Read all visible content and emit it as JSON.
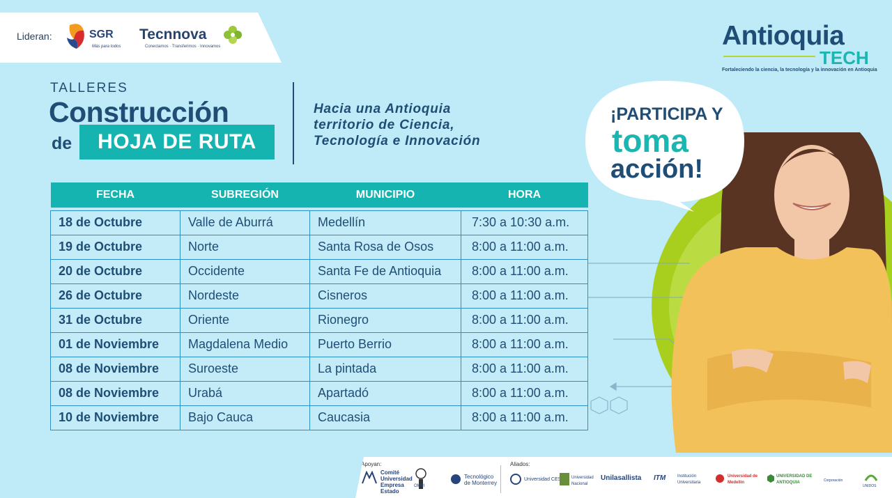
{
  "header": {
    "lead_label": "Lideran:",
    "sgr": {
      "name": "SGR",
      "tagline": "Más para todos"
    },
    "tecnnova": {
      "name": "Tecnnova",
      "tagline": "Conectamos · Transferimos · Innovamos"
    }
  },
  "brand": {
    "title": "Antioquia",
    "tech": "TECH",
    "tagline": "Fortaleciendo la ciencia, la tecnología y la innovación en Antioquia"
  },
  "title": {
    "eyebrow": "TALLERES",
    "main": "Construcción",
    "de": "de",
    "highlight": "HOJA DE RUTA"
  },
  "subtitle": [
    "Hacia una Antioquia",
    "territorio de Ciencia,",
    "Tecnología e Innovación"
  ],
  "bubble": {
    "line1": "¡PARTICIPA Y",
    "line2": "toma",
    "line3": "acción!"
  },
  "table": {
    "headers": [
      "FECHA",
      "SUBREGIÓN",
      "MUNICIPIO",
      "HORA"
    ],
    "rows": [
      [
        "18 de Octubre",
        "Valle de Aburrá",
        "Medellín",
        "7:30 a 10:30 a.m."
      ],
      [
        "19 de Octubre",
        "Norte",
        "Santa Rosa de Osos",
        "8:00 a 11:00 a.m."
      ],
      [
        "20 de Octubre",
        "Occidente",
        "Santa Fe de Antioquia",
        "8:00 a 11:00 a.m."
      ],
      [
        "26 de Octubre",
        "Nordeste",
        "Cisneros",
        "8:00 a 11:00 a.m."
      ],
      [
        "31 de Octubre",
        "Oriente",
        "Rionegro",
        "8:00 a 11:00 a.m."
      ],
      [
        "01 de Noviembre",
        "Magdalena Medio",
        "Puerto Berrio",
        "8:00 a 11:00 a.m."
      ],
      [
        "08 de Noviembre",
        "Suroeste",
        "La pintada",
        "8:00 a 11:00 a.m."
      ],
      [
        "08 de Noviembre",
        "Urabá",
        "Apartadó",
        "8:00 a 11:00 a.m."
      ],
      [
        "10 de Noviembre",
        "Bajo Cauca",
        "Caucasia",
        "8:00 a 11:00 a.m."
      ]
    ]
  },
  "footer": {
    "apoyan_label": "Apoyan:",
    "aliados_label": "Aliados:",
    "apoyan": [
      "Comité Universidad Empresa Estado",
      "OMPI",
      "Tecnológico de Monterrey"
    ],
    "aliados": [
      "Universidad CES",
      "Universidad Nacional",
      "Unilasallista",
      "ITM",
      "Institución Universitaria",
      "Universidad de Medellín",
      "UNIVERSIDAD DE ANTIOQUIA",
      "Corporación",
      "UNIDOS"
    ]
  },
  "colors": {
    "background": "#bfeaf7",
    "navy": "#1f4d75",
    "teal": "#16b4b0",
    "lime": "#a9cf1e",
    "sweater": "#f2c15a"
  }
}
